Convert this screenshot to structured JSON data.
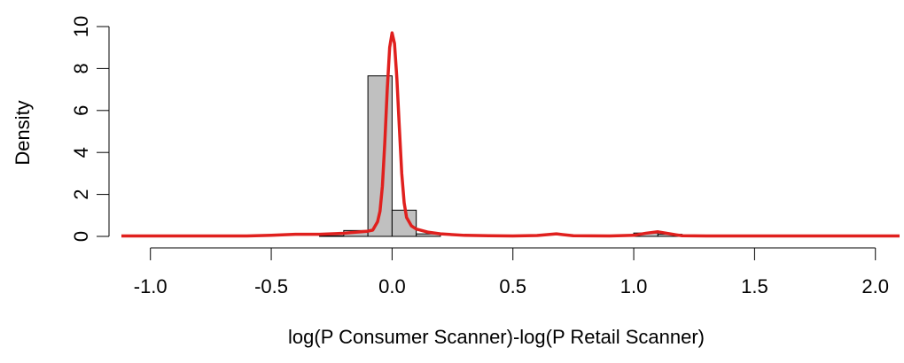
{
  "chart_data": {
    "type": "histogram",
    "xlabel": "log(P Consumer Scanner)-log(P Retail Scanner)",
    "ylabel": "Density",
    "xlim": [
      -1.12,
      2.1
    ],
    "ylim": [
      0,
      10
    ],
    "x_ticks": [
      -1.0,
      -0.5,
      0.0,
      0.5,
      1.0,
      1.5,
      2.0
    ],
    "x_tick_labels": [
      "-1.0",
      "-0.5",
      "0.0",
      "0.5",
      "1.0",
      "1.5",
      "2.0"
    ],
    "y_ticks": [
      0,
      2,
      4,
      6,
      8,
      10
    ],
    "y_tick_labels": [
      "0",
      "2",
      "4",
      "6",
      "8",
      "10"
    ],
    "histogram": {
      "bin_width": 0.1,
      "bins": [
        {
          "x0": -0.3,
          "x1": -0.2,
          "density": 0.03
        },
        {
          "x0": -0.2,
          "x1": -0.1,
          "density": 0.28
        },
        {
          "x0": -0.1,
          "x1": 0.0,
          "density": 7.65
        },
        {
          "x0": 0.0,
          "x1": 0.1,
          "density": 1.25
        },
        {
          "x0": 0.1,
          "x1": 0.2,
          "density": 0.12
        },
        {
          "x0": 1.0,
          "x1": 1.1,
          "density": 0.16
        },
        {
          "x0": 1.1,
          "x1": 1.2,
          "density": 0.1
        }
      ],
      "fill": "#c0c0c0",
      "stroke": "#000000"
    },
    "density_curve": {
      "color": "#e0201e",
      "points": [
        [
          -1.12,
          0.02
        ],
        [
          -0.6,
          0.02
        ],
        [
          -0.5,
          0.05
        ],
        [
          -0.4,
          0.1
        ],
        [
          -0.3,
          0.1
        ],
        [
          -0.2,
          0.15
        ],
        [
          -0.15,
          0.2
        ],
        [
          -0.1,
          0.25
        ],
        [
          -0.08,
          0.3
        ],
        [
          -0.06,
          0.7
        ],
        [
          -0.05,
          1.2
        ],
        [
          -0.04,
          2.4
        ],
        [
          -0.03,
          4.5
        ],
        [
          -0.02,
          7.0
        ],
        [
          -0.01,
          9.0
        ],
        [
          0.0,
          9.7
        ],
        [
          0.01,
          9.2
        ],
        [
          0.02,
          7.5
        ],
        [
          0.03,
          5.2
        ],
        [
          0.04,
          3.0
        ],
        [
          0.05,
          1.6
        ],
        [
          0.06,
          0.9
        ],
        [
          0.08,
          0.5
        ],
        [
          0.1,
          0.35
        ],
        [
          0.15,
          0.2
        ],
        [
          0.2,
          0.12
        ],
        [
          0.3,
          0.05
        ],
        [
          0.4,
          0.03
        ],
        [
          0.5,
          0.02
        ],
        [
          0.6,
          0.04
        ],
        [
          0.68,
          0.12
        ],
        [
          0.75,
          0.03
        ],
        [
          0.9,
          0.02
        ],
        [
          1.0,
          0.05
        ],
        [
          1.05,
          0.15
        ],
        [
          1.1,
          0.22
        ],
        [
          1.15,
          0.12
        ],
        [
          1.2,
          0.03
        ],
        [
          1.3,
          0.02
        ],
        [
          2.1,
          0.02
        ]
      ]
    },
    "grid": false,
    "legend": "none"
  }
}
